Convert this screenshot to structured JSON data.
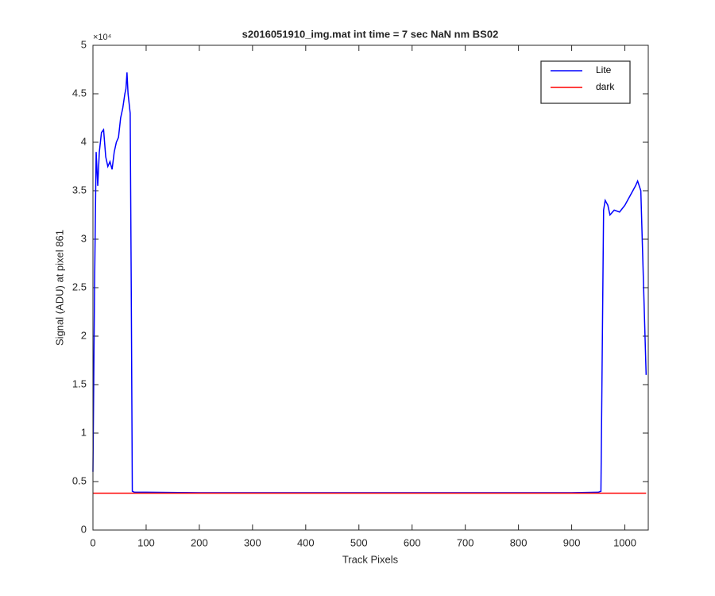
{
  "chart_data": {
    "type": "line",
    "title": "s2016051910_img.mat int time = 7 sec  NaN nm BS02",
    "x_label": "Track Pixels",
    "y_label": "Signal (ADU) at pixel 861",
    "y_exponent": "×10⁴",
    "xlim": [
      0,
      1044
    ],
    "xticks": [
      0,
      100,
      200,
      300,
      400,
      500,
      600,
      700,
      800,
      900,
      1000
    ],
    "ylim": [
      0,
      5
    ],
    "yticks": [
      0,
      0.5,
      1,
      1.5,
      2,
      2.5,
      3,
      3.5,
      4,
      4.5,
      5
    ],
    "legend": "upper right",
    "series": [
      {
        "name": "Lite",
        "color": "#0000ff",
        "x": [
          0,
          3,
          6,
          9,
          12,
          16,
          20,
          24,
          28,
          32,
          36,
          40,
          44,
          48,
          52,
          56,
          60,
          62,
          64,
          66,
          68,
          70,
          72,
          74,
          78,
          100,
          200,
          300,
          400,
          500,
          600,
          700,
          800,
          900,
          950,
          955,
          960,
          963,
          968,
          972,
          980,
          990,
          1000,
          1010,
          1020,
          1024,
          1030,
          1040
        ],
        "values": [
          0.6,
          2.5,
          3.9,
          3.55,
          3.9,
          4.1,
          4.13,
          3.85,
          3.75,
          3.8,
          3.72,
          3.9,
          4.0,
          4.05,
          4.25,
          4.35,
          4.5,
          4.55,
          4.72,
          4.5,
          4.4,
          4.3,
          2.5,
          0.4,
          0.39,
          0.39,
          0.385,
          0.385,
          0.385,
          0.385,
          0.385,
          0.385,
          0.385,
          0.385,
          0.39,
          0.4,
          3.3,
          3.4,
          3.35,
          3.25,
          3.3,
          3.28,
          3.35,
          3.45,
          3.55,
          3.6,
          3.5,
          1.6
        ]
      },
      {
        "name": "dark",
        "color": "#ff0000",
        "x": [
          0,
          80,
          160,
          240,
          320,
          400,
          480,
          560,
          640,
          720,
          800,
          880,
          960,
          1040
        ],
        "values": [
          0.38,
          0.38,
          0.38,
          0.38,
          0.38,
          0.38,
          0.38,
          0.38,
          0.38,
          0.38,
          0.38,
          0.38,
          0.38,
          0.38
        ]
      }
    ]
  }
}
